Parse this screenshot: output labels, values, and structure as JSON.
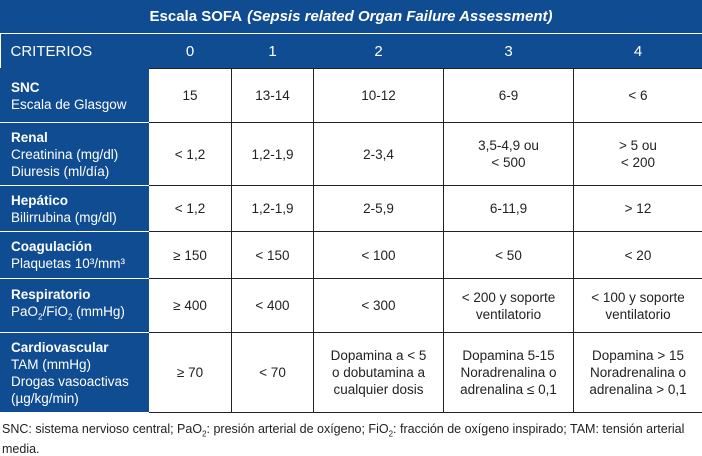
{
  "title": {
    "main": "Escala SOFA",
    "italic": "(Sepsis related Organ Failure Assessment)"
  },
  "header": [
    "CRITERIOS",
    "0",
    "1",
    "2",
    "3",
    "4"
  ],
  "rows": [
    {
      "name": "SNC",
      "sub": [
        "Escala de Glasgow"
      ],
      "values": [
        "15",
        "13-14",
        "10-12",
        "6-9",
        "< 6"
      ]
    },
    {
      "name": "Renal",
      "sub": [
        "Creatinina (mg/dl)",
        "Diuresis (ml/día)"
      ],
      "values": [
        "< 1,2",
        "1,2-1,9",
        "2-3,4",
        "3,5-4,9 ou",
        "> 5 ou"
      ],
      "values2": [
        "",
        "",
        "",
        "< 500",
        "< 200"
      ]
    },
    {
      "name": "Hepático",
      "sub": [
        "Bilirrubina (mg/dl)"
      ],
      "values": [
        "< 1,2",
        "1,2-1,9",
        "2-5,9",
        "6-11,9",
        "> 12"
      ]
    },
    {
      "name": "Coagulación",
      "sub": [
        "Plaquetas 10³/mm³"
      ],
      "values": [
        "≥ 150",
        "< 150",
        "< 100",
        "< 50",
        "< 20"
      ]
    },
    {
      "name": "Respiratorio",
      "sub": [
        "PaO",
        "2",
        "/FiO",
        "2",
        " (mmHg)"
      ],
      "values": [
        "≥ 400",
        "< 400",
        "< 300",
        "< 200 y soporte",
        "< 100 y soporte"
      ],
      "values2": [
        "",
        "",
        "",
        "ventilatorio",
        "ventilatorio"
      ]
    },
    {
      "name": "Cardiovascular",
      "sub": [
        "TAM (mmHg)",
        "Drogas vasoactivas",
        "(µg/kg/min)"
      ],
      "values": [
        "≥ 70",
        "< 70",
        "Dopamina a < 5",
        "Dopamina 5-15",
        "Dopamina > 15"
      ],
      "values2": [
        "",
        "",
        "o dobutamina a",
        "Noradrenalina o",
        "Noradrenalina o"
      ],
      "values3": [
        "",
        "",
        "cualquier dosis",
        "adrenalina ≤ 0,1",
        "adrenalina > 0,1"
      ]
    }
  ],
  "footnote": [
    "SNC: sistema nervioso central; PaO",
    "2",
    ": presión arterial de oxígeno; FiO",
    "2",
    ": fracción de oxígeno inspirado; TAM: tensión arterial media."
  ]
}
